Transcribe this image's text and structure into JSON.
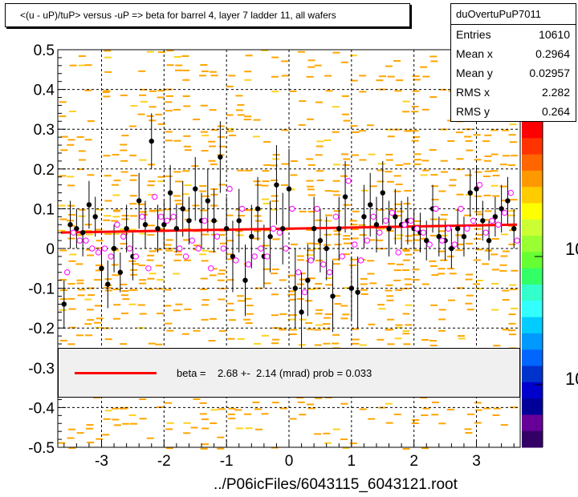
{
  "title": "<(u - uP)/tuP> versus  -uP => beta for barrel 4, layer 7 ladder 11, all wafers",
  "stats": {
    "name": "duOvertuPuP7011",
    "rows": [
      {
        "key": "Entries",
        "value": "10610"
      },
      {
        "key": "Mean x",
        "value": "0.2964"
      },
      {
        "key": "Mean y",
        "value": "0.02957"
      },
      {
        "key": "RMS x",
        "value": "2.282"
      },
      {
        "key": "RMS y",
        "value": "0.264"
      }
    ]
  },
  "fit_legend": "beta =    2.68 +-  2.14 (mrad) prob = 0.033",
  "footer": "../P06icFiles/6043115_6043121.root",
  "palette_labels": [
    "10",
    "10"
  ],
  "colors": {
    "fit_line": "#ff0000",
    "profile_marker": "#000000",
    "open_marker": "#ff00ff",
    "histogram_cell": "#ffa500"
  },
  "chart_data": {
    "type": "scatter",
    "title": "<(u - uP)/tuP> versus  -uP => beta for barrel 4, layer 7 ladder 11, all wafers",
    "xlabel": "",
    "ylabel": "",
    "xlim": [
      -3.7,
      3.7
    ],
    "ylim": [
      -0.5,
      0.5
    ],
    "x_ticks": [
      -3,
      -2,
      -1,
      0,
      1,
      2,
      3
    ],
    "y_ticks": [
      -0.5,
      -0.4,
      -0.3,
      -0.2,
      -0.1,
      0,
      0.1,
      0.2,
      0.3,
      0.4,
      0.5
    ],
    "grid": true,
    "series": [
      {
        "kind": "filled-markers-with-error-bars",
        "x": [
          -3.6,
          -3.5,
          -3.4,
          -3.3,
          -3.2,
          -3.1,
          -3.0,
          -2.9,
          -2.8,
          -2.7,
          -2.6,
          -2.5,
          -2.4,
          -2.3,
          -2.2,
          -2.1,
          -2.0,
          -1.9,
          -1.8,
          -1.7,
          -1.6,
          -1.5,
          -1.4,
          -1.3,
          -1.2,
          -1.1,
          -1.0,
          -0.9,
          -0.8,
          -0.7,
          -0.6,
          -0.5,
          -0.4,
          -0.3,
          -0.2,
          -0.1,
          0.0,
          0.1,
          0.2,
          0.3,
          0.4,
          0.5,
          0.6,
          0.7,
          0.8,
          0.9,
          1.0,
          1.1,
          1.2,
          1.3,
          1.4,
          1.5,
          1.6,
          1.7,
          1.8,
          1.9,
          2.0,
          2.1,
          2.2,
          2.3,
          2.4,
          2.5,
          2.6,
          2.7,
          2.8,
          2.9,
          3.0,
          3.1,
          3.2,
          3.3,
          3.4,
          3.5,
          3.6
        ],
        "y": [
          -0.14,
          0.06,
          0.05,
          0.04,
          0.11,
          0.08,
          -0.05,
          -0.09,
          0.0,
          -0.06,
          0.05,
          -0.02,
          0.12,
          0.06,
          0.27,
          0.05,
          0.06,
          0.14,
          0.05,
          0.1,
          0.07,
          0.15,
          0.07,
          0.12,
          0.07,
          0.23,
          0.05,
          -0.02,
          0.07,
          -0.08,
          0.03,
          0.1,
          -0.02,
          0.03,
          0.16,
          0.05,
          0.15,
          -0.1,
          -0.16,
          -0.08,
          0.05,
          0.02,
          0.0,
          -0.12,
          0.05,
          0.13,
          -0.1,
          -0.11,
          0.08,
          0.11,
          0.06,
          0.14,
          0.05,
          0.08,
          0.06,
          0.07,
          0.05,
          0.04,
          0.02,
          0.1,
          0.03,
          0.02,
          0.0,
          0.05,
          0.03,
          0.14,
          0.15,
          0.07,
          0.02,
          0.08,
          0.1,
          0.12,
          0.05
        ],
        "err": [
          0.06,
          0.06,
          0.05,
          0.06,
          0.06,
          0.05,
          0.05,
          0.06,
          0.06,
          0.05,
          0.06,
          0.06,
          0.07,
          0.06,
          0.07,
          0.06,
          0.06,
          0.07,
          0.06,
          0.07,
          0.06,
          0.08,
          0.07,
          0.08,
          0.08,
          0.09,
          0.08,
          0.09,
          0.08,
          0.09,
          0.08,
          0.08,
          0.08,
          0.09,
          0.1,
          0.09,
          0.1,
          0.1,
          0.1,
          0.09,
          0.08,
          0.08,
          0.08,
          0.09,
          0.08,
          0.09,
          0.08,
          0.09,
          0.08,
          0.08,
          0.07,
          0.08,
          0.07,
          0.07,
          0.06,
          0.06,
          0.05,
          0.05,
          0.05,
          0.06,
          0.05,
          0.05,
          0.05,
          0.05,
          0.05,
          0.06,
          0.06,
          0.05,
          0.05,
          0.05,
          0.06,
          0.06,
          0.05
        ]
      },
      {
        "kind": "open-markers",
        "x": [
          -3.55,
          -3.45,
          -3.35,
          -3.25,
          -3.15,
          -3.05,
          -2.95,
          -2.85,
          -2.75,
          -2.65,
          -2.55,
          -2.45,
          -2.35,
          -2.25,
          -2.15,
          -2.05,
          -1.95,
          -1.85,
          -1.75,
          -1.65,
          -1.55,
          -1.45,
          -1.35,
          -1.25,
          -1.15,
          -1.05,
          -0.95,
          -0.85,
          -0.75,
          -0.65,
          -0.55,
          -0.45,
          -0.35,
          -0.25,
          -0.15,
          -0.05,
          0.05,
          0.15,
          0.25,
          0.35,
          0.45,
          0.55,
          0.65,
          0.75,
          0.85,
          0.95,
          1.05,
          1.15,
          1.25,
          1.35,
          1.45,
          1.55,
          1.65,
          1.75,
          1.85,
          1.95,
          2.05,
          2.15,
          2.25,
          2.35,
          2.45,
          2.55,
          2.65,
          2.75,
          2.85,
          2.95,
          3.05,
          3.15,
          3.25,
          3.35,
          3.45,
          3.55,
          3.65
        ],
        "y": [
          -0.06,
          0.04,
          0.02,
          0.02,
          0.0,
          -0.01,
          0.0,
          -0.02,
          0.06,
          0.03,
          0.0,
          -0.02,
          0.08,
          -0.05,
          0.13,
          0.08,
          0.07,
          0.08,
          0.0,
          -0.02,
          0.02,
          0.0,
          0.07,
          -0.05,
          0.03,
          0.0,
          0.15,
          -0.03,
          0.1,
          -0.04,
          -0.02,
          0.0,
          -0.02,
          0.05,
          0.04,
          0.0,
          0.1,
          -0.06,
          -0.11,
          -0.03,
          0.1,
          -0.04,
          -0.06,
          0.08,
          -0.02,
          0.17,
          0.01,
          -0.03,
          0.02,
          0.08,
          0.04,
          0.07,
          0.09,
          -0.01,
          0.06,
          0.07,
          0.05,
          0.04,
          0.01,
          0.1,
          0.02,
          0.05,
          0.01,
          0.1,
          0.05,
          0.07,
          0.16,
          0.04,
          0.07,
          0.06,
          0.09,
          0.14,
          0.02
        ]
      }
    ],
    "fit": {
      "kind": "line",
      "x": [
        -3.65,
        3.65
      ],
      "y": [
        0.04,
        0.06
      ]
    },
    "histogram_bands": [
      {
        "y_range": [
          0.4,
          0.5
        ],
        "density": 0.35
      },
      {
        "y_range": [
          0.3,
          0.4
        ],
        "density": 0.3
      },
      {
        "y_range": [
          0.2,
          0.3
        ],
        "density": 0.32
      },
      {
        "y_range": [
          0.1,
          0.2
        ],
        "density": 0.4
      },
      {
        "y_range": [
          0.0,
          0.1
        ],
        "density": 0.55
      },
      {
        "y_range": [
          -0.1,
          0.0
        ],
        "density": 0.5
      },
      {
        "y_range": [
          -0.2,
          -0.1
        ],
        "density": 0.4
      },
      {
        "y_range": [
          -0.3,
          -0.2
        ],
        "density": 0.32
      },
      {
        "y_range": [
          -0.4,
          -0.3
        ],
        "density": 0.28
      },
      {
        "y_range": [
          -0.5,
          -0.4
        ],
        "density": 0.3
      }
    ]
  }
}
